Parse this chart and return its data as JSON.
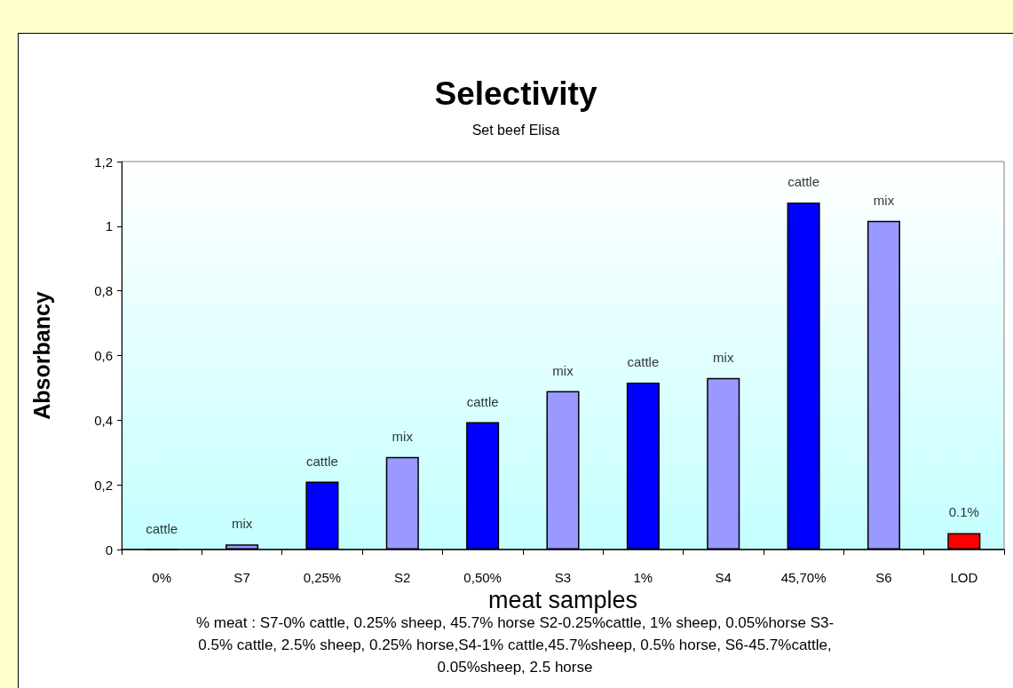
{
  "chart_data": {
    "type": "bar",
    "title": "Selectivity",
    "subtitle": "Set beef Elisa",
    "xlabel": "meat samples",
    "ylabel": "Absorbancy",
    "categories": [
      "0%",
      "S7",
      "0,25%",
      "S2",
      "0,50%",
      "S3",
      "1%",
      "S4",
      "45,70%",
      "S6",
      "LOD"
    ],
    "values": [
      0,
      0.016,
      0.21,
      0.286,
      0.394,
      0.49,
      0.516,
      0.531,
      1.073,
      1.017,
      0.051
    ],
    "colors": [
      "#0000ff",
      "#9999ff",
      "#0000ff",
      "#9999ff",
      "#0000ff",
      "#9999ff",
      "#0000ff",
      "#9999ff",
      "#0000ff",
      "#9999ff",
      "#ff0000"
    ],
    "ylim": [
      0,
      1.2
    ],
    "yticks": [
      0,
      {
        "value": 0.2,
        "label": "0,2"
      },
      {
        "value": 0.4,
        "label": "0,4"
      },
      {
        "value": 0.6,
        "label": "0,6"
      },
      {
        "value": 0.8,
        "label": "0,8"
      },
      1,
      {
        "value": 1.2,
        "label": "1,2"
      }
    ],
    "annotations": [
      {
        "text": "cattle",
        "x": "0%",
        "y": 0
      },
      {
        "text": "mix",
        "x": "S7",
        "y": 0.016
      },
      {
        "text": "cattle",
        "x": "0,25%",
        "y": 0.21
      },
      {
        "text": "mix",
        "x": "S2",
        "y": 0.286
      },
      {
        "text": "cattle",
        "x": "0,50%",
        "y": 0.394
      },
      {
        "text": "mix",
        "x": "S3",
        "y": 0.49
      },
      {
        "text": "cattle",
        "x": "1%",
        "y": 0.516
      },
      {
        "text": "mix",
        "x": "S4",
        "y": 0.531
      },
      {
        "text": "cattle",
        "x": "45,70%",
        "y": 1.073
      },
      {
        "text": "mix",
        "x": "S6",
        "y": 1.017
      },
      {
        "text": "0.1%",
        "x": "LOD",
        "y": 0.051
      },
      "% meat : S7-0% cattle, 0.25% sheep, 45.7% horse S2-0.25%cattle, 1% sheep, 0.05%horse S3-0.5% cattle, 2.5% sheep, 0.25% horse,S4-1% cattle,45.7%sheep, 0.5% horse, S6-45.7%cattle, 0.05%sheep, 2.5 horse"
    ]
  }
}
